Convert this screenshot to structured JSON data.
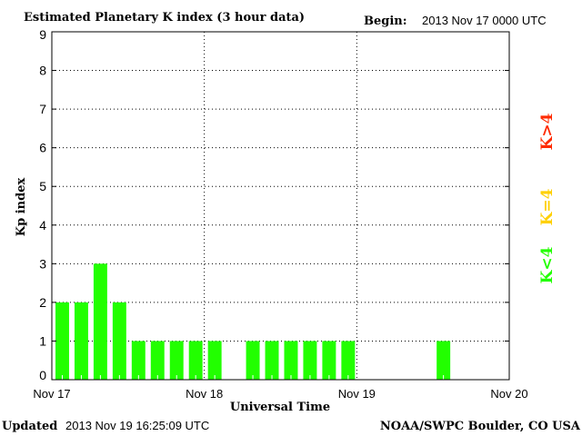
{
  "chart_data": {
    "type": "bar",
    "title": "Estimated Planetary K index (3 hour data)",
    "begin_label": "Begin:",
    "begin_value": "2013 Nov 17 0000 UTC",
    "xlabel": "Universal Time",
    "ylabel": "Kp index",
    "ylim": [
      0,
      9
    ],
    "yticks": [
      "0",
      "1",
      "2",
      "3",
      "4",
      "5",
      "6",
      "7",
      "8",
      "9"
    ],
    "xticks": [
      "Nov 17",
      "Nov 18",
      "Nov 19",
      "Nov 20"
    ],
    "bins_per_day": 8,
    "values": [
      2,
      2,
      3,
      2,
      1,
      1,
      1,
      1,
      1,
      null,
      1,
      1,
      1,
      1,
      1,
      1,
      null,
      null,
      null,
      null,
      1,
      null,
      null,
      null
    ],
    "bar_color": "#22ff00",
    "grid": true,
    "legend": [
      {
        "label": "K>4",
        "color": "#ff2a00"
      },
      {
        "label": "K=4",
        "color": "#ffd000"
      },
      {
        "label": "K<4",
        "color": "#22ff00"
      }
    ]
  },
  "footer": {
    "updated_label": "Updated",
    "updated_value": "2013 Nov 19 16:25:09 UTC",
    "source": "NOAA/SWPC Boulder, CO USA"
  }
}
